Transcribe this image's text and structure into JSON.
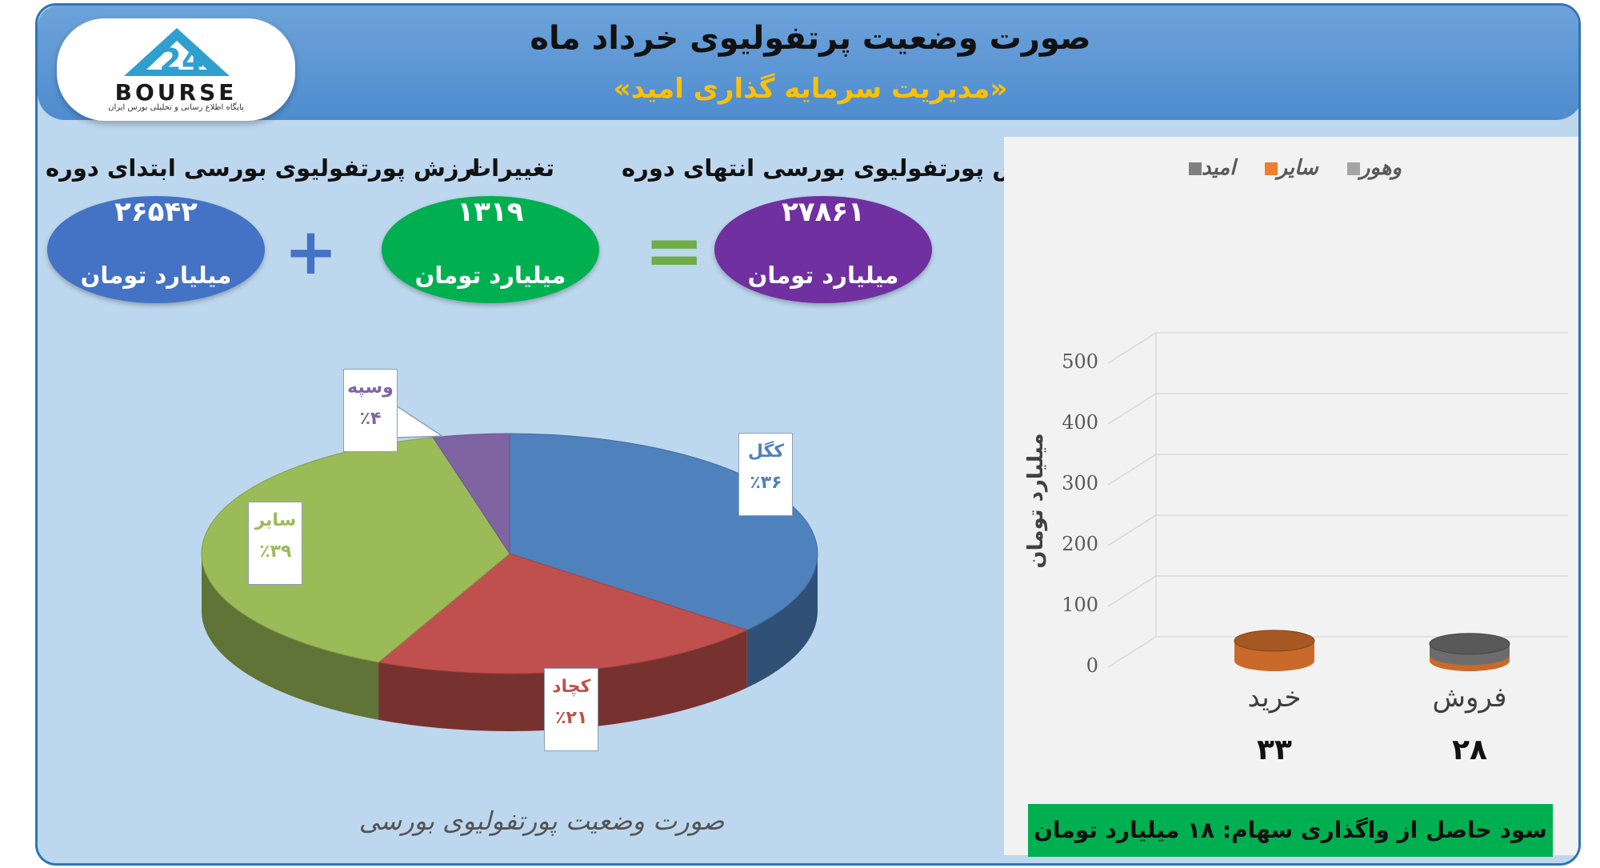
{
  "header": {
    "title": "صورت وضعیت پرتفولیوی خرداد ماه",
    "subtitle": "«مدیریت سرمایه گذاری امید»",
    "logo_word": "BOURSE",
    "logo_sub": "پایگاه اطلاع رسانی و تحلیلی بورس ایران"
  },
  "summary": {
    "start": {
      "label": "ارزش پورتفولیوی بورسی ابتدای دوره",
      "value": "۲۶۵۴۲",
      "unit": "میلیارد تومان",
      "color": "#4472c4"
    },
    "change": {
      "label": "تغییرات",
      "value": "۱۳۱۹",
      "unit": "میلیارد تومان",
      "color": "#00b050"
    },
    "end": {
      "label": "ارزش پورتفولیوی بورسی انتهای دوره",
      "value": "۲۷۸۶۱",
      "unit": "میلیارد تومان",
      "color": "#7030a0"
    },
    "plus_symbol": "+",
    "equals_symbol": "="
  },
  "chart_data": [
    {
      "type": "pie",
      "title": "صورت وضعیت پورتفولیوی بورسی",
      "slices": [
        {
          "name": "کگل",
          "value": 36,
          "label": "٪۳۶",
          "color": "#4f81bd"
        },
        {
          "name": "کچاد",
          "value": 21,
          "label": "٪۲۱",
          "color": "#c0504d"
        },
        {
          "name": "سایر",
          "value": 39,
          "label": "٪۳۹",
          "color": "#9bbb59"
        },
        {
          "name": "وسپه",
          "value": 4,
          "label": "٪۴",
          "color": "#8064a2"
        }
      ],
      "label_colors": {
        "کگل": "#4f81bd",
        "کچاد": "#c0504d",
        "سایر": "#9bbb59",
        "وسپه": "#8064a2"
      }
    },
    {
      "type": "bar",
      "categories": [
        "خرید",
        "فروش"
      ],
      "category_totals": [
        "۳۳",
        "۲۸"
      ],
      "series": [
        {
          "name": "وهور",
          "values": [
            0,
            0
          ],
          "color": "#a5a5a5"
        },
        {
          "name": "سایر",
          "values": [
            33,
            10
          ],
          "color": "#ed7d31"
        },
        {
          "name": "امید",
          "values": [
            0,
            18
          ],
          "color": "#7f7f7f"
        }
      ],
      "ylabel": "میلیارد تومان",
      "ylim": [
        0,
        500
      ],
      "yticks": [
        "0",
        "100",
        "200",
        "300",
        "400",
        "500"
      ],
      "legend_position": "top",
      "grid": true
    }
  ],
  "profit_note": "سود حاصل از واگذاری سهام: ۱۸ میلیارد تومان"
}
